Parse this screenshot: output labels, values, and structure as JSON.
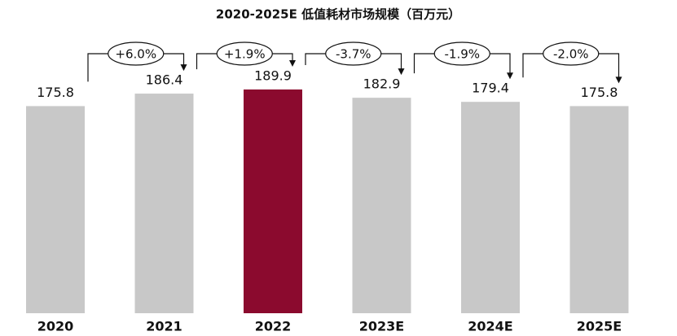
{
  "chart_data": {
    "type": "bar",
    "title": "2020-2025E 低值耗材市场规模（百万元）",
    "categories": [
      "2020",
      "2021",
      "2022",
      "2023E",
      "2024E",
      "2025E"
    ],
    "values": [
      175.8,
      186.4,
      189.9,
      182.9,
      179.4,
      175.8
    ],
    "colors": [
      "#c8c8c8",
      "#c8c8c8",
      "#8b0a2e",
      "#c8c8c8",
      "#c8c8c8",
      "#c8c8c8"
    ],
    "annotations": [
      "+6.0%",
      "+1.9%",
      "-3.7%",
      "-1.9%",
      "-2.0%"
    ]
  }
}
